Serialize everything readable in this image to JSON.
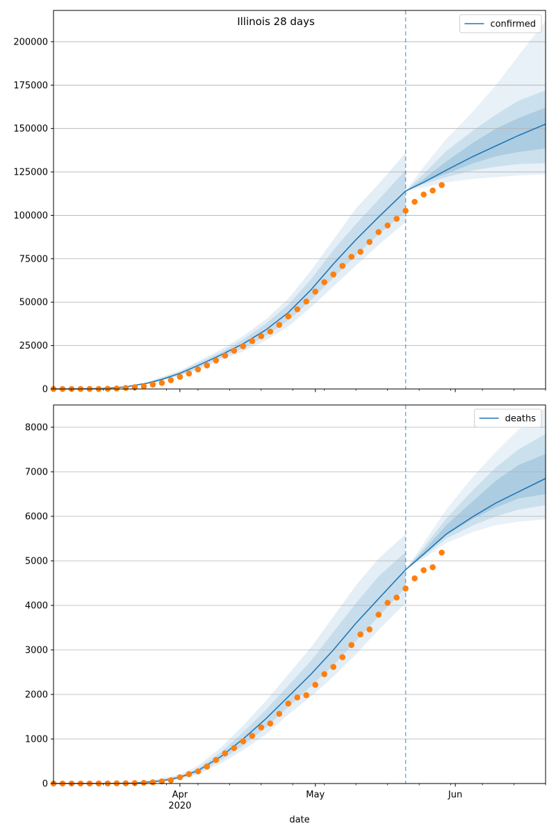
{
  "figure": {
    "title": "Illinois 28 days",
    "xlabel": "date",
    "x_ticks": [
      {
        "date": "2020-04-01",
        "label": "Apr",
        "sublabel": "2020"
      },
      {
        "date": "2020-05-01",
        "label": "May",
        "sublabel": ""
      },
      {
        "date": "2020-06-01",
        "label": "Jun",
        "sublabel": ""
      }
    ],
    "forecast_start": "2020-05-21"
  },
  "colors": {
    "model": "#1f77b4",
    "observed": "#ff7f0e",
    "band": "#1f77b4",
    "grid": "#b0b0b0"
  },
  "chart_data": [
    {
      "type": "line",
      "legend": "confirmed",
      "legend_position": "top-right",
      "xlim": [
        "2020-03-04",
        "2020-06-21"
      ],
      "ylim": [
        0,
        218000
      ],
      "yticks": [
        0,
        25000,
        50000,
        75000,
        100000,
        125000,
        150000,
        175000,
        200000
      ],
      "grid": "y",
      "model_line": {
        "x": [
          "2020-03-04",
          "2020-03-10",
          "2020-03-15",
          "2020-03-20",
          "2020-03-25",
          "2020-03-28",
          "2020-04-01",
          "2020-04-05",
          "2020-04-10",
          "2020-04-15",
          "2020-04-20",
          "2020-04-25",
          "2020-04-30",
          "2020-05-05",
          "2020-05-10",
          "2020-05-15",
          "2020-05-21",
          "2020-05-25",
          "2020-05-30",
          "2020-06-05",
          "2020-06-10",
          "2020-06-15",
          "2020-06-21"
        ],
        "y": [
          0,
          50,
          300,
          1200,
          3500,
          5500,
          9000,
          13500,
          19500,
          26000,
          34000,
          44000,
          57000,
          72000,
          86000,
          99000,
          114000,
          119000,
          126000,
          134000,
          140000,
          146000,
          152500
        ]
      },
      "bands": [
        {
          "x": [
            "2020-03-25",
            "2020-04-01",
            "2020-04-05",
            "2020-04-10",
            "2020-04-15",
            "2020-04-20",
            "2020-04-25",
            "2020-04-30",
            "2020-05-05",
            "2020-05-10",
            "2020-05-15",
            "2020-05-21"
          ],
          "upper": [
            4200,
            10500,
            16000,
            22500,
            30500,
            40000,
            52000,
            68000,
            86000,
            104000,
            118000,
            136000
          ],
          "lower": [
            2800,
            7500,
            11000,
            16500,
            21500,
            28000,
            36000,
            47000,
            59000,
            71000,
            83000,
            96000
          ]
        },
        {
          "x": [
            "2020-03-25",
            "2020-04-01",
            "2020-04-05",
            "2020-04-10",
            "2020-04-15",
            "2020-04-20",
            "2020-04-25",
            "2020-04-30",
            "2020-05-05",
            "2020-05-10",
            "2020-05-15",
            "2020-05-21"
          ],
          "upper": [
            3900,
            10000,
            15000,
            21000,
            28500,
            37500,
            48500,
            63000,
            80000,
            95000,
            109000,
            126000
          ],
          "lower": [
            3100,
            8000,
            12000,
            18000,
            23500,
            30500,
            39500,
            51000,
            64000,
            77000,
            89000,
            102000
          ]
        },
        {
          "x": [
            "2020-05-21",
            "2020-05-25",
            "2020-05-30",
            "2020-06-05",
            "2020-06-10",
            "2020-06-15",
            "2020-06-21"
          ],
          "upper": [
            114000,
            128000,
            144000,
            160000,
            175000,
            192000,
            212000
          ],
          "lower": [
            114000,
            116000,
            119000,
            121000,
            122000,
            123000,
            123500
          ]
        },
        {
          "x": [
            "2020-05-21",
            "2020-05-25",
            "2020-05-30",
            "2020-06-05",
            "2020-06-10",
            "2020-06-15",
            "2020-06-21"
          ],
          "upper": [
            114000,
            124000,
            137000,
            149000,
            158000,
            166000,
            172000
          ],
          "lower": [
            114000,
            118000,
            122000,
            126000,
            128000,
            129500,
            130000
          ]
        },
        {
          "x": [
            "2020-05-21",
            "2020-05-25",
            "2020-05-30",
            "2020-06-05",
            "2020-06-10",
            "2020-06-15",
            "2020-06-21"
          ],
          "upper": [
            114000,
            121000,
            131000,
            142000,
            150000,
            156000,
            162000
          ],
          "lower": [
            114000,
            119000,
            124000,
            130000,
            134000,
            136500,
            138500
          ]
        }
      ],
      "observed": {
        "x": [
          "2020-03-04",
          "2020-03-06",
          "2020-03-08",
          "2020-03-10",
          "2020-03-12",
          "2020-03-14",
          "2020-03-16",
          "2020-03-18",
          "2020-03-20",
          "2020-03-22",
          "2020-03-24",
          "2020-03-26",
          "2020-03-28",
          "2020-03-30",
          "2020-04-01",
          "2020-04-03",
          "2020-04-05",
          "2020-04-07",
          "2020-04-09",
          "2020-04-11",
          "2020-04-13",
          "2020-04-15",
          "2020-04-17",
          "2020-04-19",
          "2020-04-21",
          "2020-04-23",
          "2020-04-25",
          "2020-04-27",
          "2020-04-29",
          "2020-05-01",
          "2020-05-03",
          "2020-05-05",
          "2020-05-07",
          "2020-05-09",
          "2020-05-11",
          "2020-05-13",
          "2020-05-15",
          "2020-05-17",
          "2020-05-19",
          "2020-05-21",
          "2020-05-23",
          "2020-05-25",
          "2020-05-27",
          "2020-05-29"
        ],
        "y": [
          4,
          6,
          7,
          12,
          25,
          46,
          105,
          288,
          585,
          1049,
          1535,
          2538,
          3491,
          5057,
          6980,
          8904,
          11256,
          13549,
          16422,
          19180,
          22025,
          24593,
          27575,
          30357,
          33059,
          36934,
          41777,
          45883,
          50355,
          56055,
          61499,
          65962,
          70873,
          76085,
          79007,
          84694,
          90369,
          94191,
          98030,
          102686,
          107796,
          112017,
          114306,
          117455
        ]
      }
    },
    {
      "type": "line",
      "legend": "deaths",
      "legend_position": "top-right",
      "xlim": [
        "2020-03-04",
        "2020-06-21"
      ],
      "ylim": [
        0,
        8500
      ],
      "yticks": [
        0,
        1000,
        2000,
        3000,
        4000,
        5000,
        6000,
        7000,
        8000
      ],
      "grid": "y",
      "model_line": {
        "x": [
          "2020-03-04",
          "2020-03-15",
          "2020-03-22",
          "2020-03-28",
          "2020-04-01",
          "2020-04-05",
          "2020-04-10",
          "2020-04-15",
          "2020-04-20",
          "2020-04-25",
          "2020-04-30",
          "2020-05-05",
          "2020-05-10",
          "2020-05-15",
          "2020-05-21",
          "2020-05-25",
          "2020-05-30",
          "2020-06-05",
          "2020-06-10",
          "2020-06-15",
          "2020-06-21"
        ],
        "y": [
          0,
          0,
          10,
          60,
          140,
          290,
          600,
          1000,
          1450,
          1950,
          2450,
          3000,
          3600,
          4150,
          4800,
          5150,
          5600,
          6000,
          6300,
          6550,
          6850
        ]
      },
      "bands": [
        {
          "x": [
            "2020-03-25",
            "2020-04-01",
            "2020-04-05",
            "2020-04-10",
            "2020-04-15",
            "2020-04-20",
            "2020-04-25",
            "2020-04-30",
            "2020-05-05",
            "2020-05-10",
            "2020-05-15",
            "2020-05-21"
          ],
          "upper": [
            60,
            200,
            400,
            800,
            1300,
            1850,
            2450,
            3050,
            3750,
            4450,
            5050,
            5600
          ],
          "lower": [
            10,
            90,
            200,
            450,
            750,
            1100,
            1550,
            1950,
            2400,
            2900,
            3450,
            4050
          ]
        },
        {
          "x": [
            "2020-03-25",
            "2020-04-01",
            "2020-04-05",
            "2020-04-10",
            "2020-04-15",
            "2020-04-20",
            "2020-04-25",
            "2020-04-30",
            "2020-05-05",
            "2020-05-10",
            "2020-05-15",
            "2020-05-21"
          ],
          "upper": [
            45,
            170,
            340,
            700,
            1150,
            1650,
            2200,
            2750,
            3400,
            4050,
            4650,
            5200
          ],
          "lower": [
            20,
            110,
            240,
            520,
            850,
            1250,
            1720,
            2180,
            2650,
            3200,
            3750,
            4400
          ]
        },
        {
          "x": [
            "2020-05-21",
            "2020-05-25",
            "2020-05-30",
            "2020-06-05",
            "2020-06-10",
            "2020-06-15",
            "2020-06-21"
          ],
          "upper": [
            4800,
            5400,
            6150,
            6900,
            7450,
            7950,
            8450
          ],
          "lower": [
            4800,
            5050,
            5400,
            5650,
            5800,
            5880,
            5930
          ]
        },
        {
          "x": [
            "2020-05-21",
            "2020-05-25",
            "2020-05-30",
            "2020-06-05",
            "2020-06-10",
            "2020-06-15",
            "2020-06-21"
          ],
          "upper": [
            4800,
            5300,
            5950,
            6600,
            7100,
            7500,
            7850
          ],
          "lower": [
            4800,
            5100,
            5500,
            5800,
            6000,
            6150,
            6250
          ]
        },
        {
          "x": [
            "2020-05-21",
            "2020-05-25",
            "2020-05-30",
            "2020-06-05",
            "2020-06-10",
            "2020-06-15",
            "2020-06-21"
          ],
          "upper": [
            4800,
            5230,
            5800,
            6350,
            6800,
            7150,
            7400
          ],
          "lower": [
            4800,
            5150,
            5580,
            5950,
            6200,
            6400,
            6500
          ]
        }
      ],
      "observed": {
        "x": [
          "2020-03-04",
          "2020-03-06",
          "2020-03-08",
          "2020-03-10",
          "2020-03-12",
          "2020-03-14",
          "2020-03-16",
          "2020-03-18",
          "2020-03-20",
          "2020-03-22",
          "2020-03-24",
          "2020-03-26",
          "2020-03-28",
          "2020-03-30",
          "2020-04-01",
          "2020-04-03",
          "2020-04-05",
          "2020-04-07",
          "2020-04-09",
          "2020-04-11",
          "2020-04-13",
          "2020-04-15",
          "2020-04-17",
          "2020-04-19",
          "2020-04-21",
          "2020-04-23",
          "2020-04-25",
          "2020-04-27",
          "2020-04-29",
          "2020-05-01",
          "2020-05-03",
          "2020-05-05",
          "2020-05-07",
          "2020-05-09",
          "2020-05-11",
          "2020-05-13",
          "2020-05-15",
          "2020-05-17",
          "2020-05-19",
          "2020-05-21",
          "2020-05-23",
          "2020-05-25",
          "2020-05-27",
          "2020-05-29"
        ],
        "y": [
          0,
          0,
          0,
          0,
          0,
          1,
          1,
          4,
          5,
          9,
          16,
          26,
          47,
          73,
          141,
          210,
          274,
          380,
          528,
          677,
          798,
          948,
          1072,
          1259,
          1349,
          1565,
          1795,
          1933,
          1983,
          2215,
          2457,
          2618,
          2838,
          3111,
          3349,
          3459,
          3792,
          4058,
          4177,
          4379,
          4607,
          4790,
          4856,
          5186
        ]
      }
    }
  ]
}
